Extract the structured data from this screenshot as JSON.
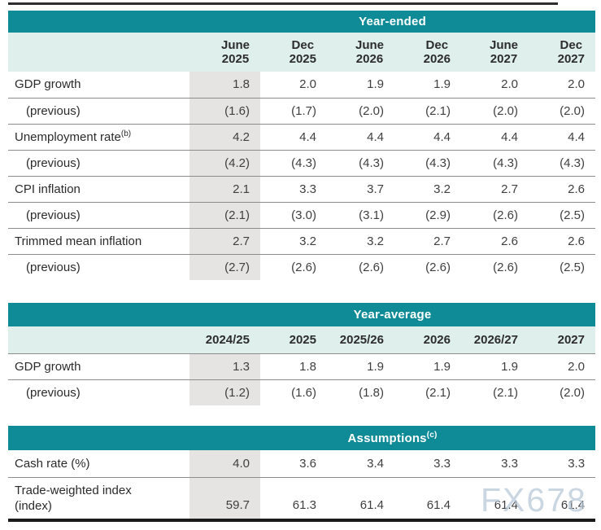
{
  "colors": {
    "teal": "#0f8a97",
    "mint": "#deefec",
    "shade": "#e5e4e2",
    "rule": "#8c8c8c",
    "heavy_rule": "#1a1a1a",
    "watermark": "#b7c7d6"
  },
  "watermark": {
    "text": "FX678"
  },
  "table_year_ended": {
    "title": "Year-ended",
    "columns": [
      {
        "line1": "June",
        "line2": "2025"
      },
      {
        "line1": "Dec",
        "line2": "2025"
      },
      {
        "line1": "June",
        "line2": "2026"
      },
      {
        "line1": "Dec",
        "line2": "2026"
      },
      {
        "line1": "June",
        "line2": "2027"
      },
      {
        "line1": "Dec",
        "line2": "2027"
      }
    ],
    "rows": [
      {
        "label": "GDP growth",
        "values": [
          "1.8",
          "2.0",
          "1.9",
          "1.9",
          "2.0",
          "2.0"
        ]
      },
      {
        "label": "(previous)",
        "values": [
          "(1.6)",
          "(1.7)",
          "(2.0)",
          "(2.1)",
          "(2.0)",
          "(2.0)"
        ]
      },
      {
        "label_text": "Unemployment rate",
        "label_sup": "(b)",
        "values": [
          "4.2",
          "4.4",
          "4.4",
          "4.4",
          "4.4",
          "4.4"
        ]
      },
      {
        "label": "(previous)",
        "values": [
          "(4.2)",
          "(4.3)",
          "(4.3)",
          "(4.3)",
          "(4.3)",
          "(4.3)"
        ]
      },
      {
        "label": "CPI inflation",
        "values": [
          "2.1",
          "3.3",
          "3.7",
          "3.2",
          "2.7",
          "2.6"
        ]
      },
      {
        "label": "(previous)",
        "values": [
          "(2.1)",
          "(3.0)",
          "(3.1)",
          "(2.9)",
          "(2.6)",
          "(2.5)"
        ]
      },
      {
        "label": "Trimmed mean inflation",
        "values": [
          "2.7",
          "3.2",
          "3.2",
          "2.7",
          "2.6",
          "2.6"
        ]
      },
      {
        "label": "(previous)",
        "values": [
          "(2.7)",
          "(2.6)",
          "(2.6)",
          "(2.6)",
          "(2.6)",
          "(2.5)"
        ]
      }
    ]
  },
  "table_year_average": {
    "title": "Year-average",
    "columns": [
      "2024/25",
      "2025",
      "2025/26",
      "2026",
      "2026/27",
      "2027"
    ],
    "rows": [
      {
        "label": "GDP growth",
        "values": [
          "1.3",
          "1.8",
          "1.9",
          "1.9",
          "1.9",
          "2.0"
        ]
      },
      {
        "label": "(previous)",
        "values": [
          "(1.2)",
          "(1.6)",
          "(1.8)",
          "(2.1)",
          "(2.1)",
          "(2.0)"
        ]
      }
    ]
  },
  "table_assumptions": {
    "title": "Assumptions",
    "title_sup": "(c)",
    "rows": [
      {
        "label": "Cash rate (%)",
        "values": [
          "4.0",
          "3.6",
          "3.4",
          "3.3",
          "3.3",
          "3.3"
        ]
      },
      {
        "label_line1": "Trade-weighted index",
        "label_line2": "(index)",
        "values": [
          "59.7",
          "61.3",
          "61.4",
          "61.4",
          "61.4",
          "61.4"
        ]
      }
    ]
  }
}
